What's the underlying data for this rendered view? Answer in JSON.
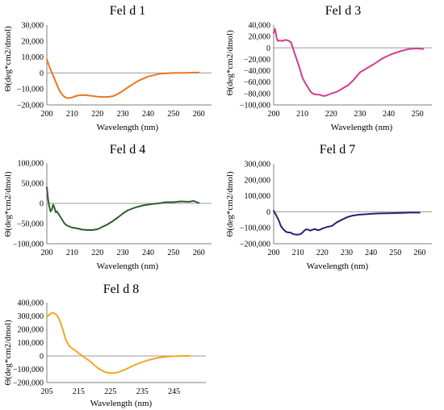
{
  "chart_data": [
    {
      "type": "line",
      "title": "Fel d 1",
      "xlabel": "Wavelength (nm)",
      "ylabel": "Θ(deg*cm2/dmol)",
      "xlim": [
        200,
        265
      ],
      "ylim": [
        -20000,
        30000
      ],
      "xticks": [
        200,
        210,
        220,
        230,
        240,
        250,
        260
      ],
      "yticks": [
        -20000,
        -10000,
        0,
        10000,
        20000,
        30000
      ],
      "ytick_labels": [
        "−20,000",
        "−10,000",
        "0",
        "10,000",
        "20,000",
        "30,000"
      ],
      "grid": false,
      "color": "#E87722",
      "series": [
        {
          "x": [
            200,
            201,
            202,
            203,
            204,
            205,
            206,
            207,
            208,
            209,
            210,
            212,
            214,
            216,
            218,
            220,
            222,
            224,
            226,
            228,
            230,
            233,
            236,
            240,
            245,
            250,
            255,
            260
          ],
          "y": [
            8500,
            4000,
            200,
            -3500,
            -7500,
            -11000,
            -13500,
            -15000,
            -15700,
            -15700,
            -15300,
            -14200,
            -13800,
            -14000,
            -14400,
            -14800,
            -15000,
            -15000,
            -14600,
            -13200,
            -11200,
            -8000,
            -5000,
            -2200,
            -400,
            0,
            100,
            300
          ]
        }
      ]
    },
    {
      "type": "line",
      "title": "Fel d 3",
      "xlabel": "Wavelength (nm)",
      "ylabel": "Θ(deg*cm2/dmol)",
      "xlim": [
        200,
        255
      ],
      "ylim": [
        -100000,
        40000
      ],
      "xticks": [
        200,
        210,
        220,
        230,
        240,
        250
      ],
      "yticks": [
        -100000,
        -80000,
        -60000,
        -40000,
        -20000,
        0,
        20000,
        40000
      ],
      "ytick_labels": [
        "−100,000",
        "−80,000",
        "−60,000",
        "−40,000",
        "−20,000",
        "0",
        "20,000",
        "40,000"
      ],
      "grid": false,
      "color": "#D63A8F",
      "series": [
        {
          "x": [
            200,
            200.5,
            201,
            201.5,
            202,
            203,
            204,
            205,
            206,
            207,
            208,
            209,
            210,
            211,
            212,
            213,
            214,
            215,
            216,
            217,
            218,
            219,
            220,
            222,
            224,
            226,
            228,
            230,
            232,
            235,
            238,
            241,
            244,
            247,
            250,
            252
          ],
          "y": [
            26000,
            33000,
            18000,
            12000,
            13000,
            12000,
            14000,
            13000,
            10000,
            -5000,
            -20000,
            -35000,
            -52000,
            -62000,
            -70000,
            -78000,
            -81000,
            -82000,
            -82000,
            -84000,
            -84000,
            -82000,
            -80000,
            -77000,
            -71000,
            -65000,
            -55000,
            -43000,
            -37000,
            -28000,
            -18000,
            -11000,
            -6000,
            -2000,
            -1000,
            -2000
          ]
        }
      ]
    },
    {
      "type": "line",
      "title": "Fel d 4",
      "xlabel": "Wavelength (nm)",
      "ylabel": "Θ(deg*cm2/dmol)",
      "xlim": [
        200,
        265
      ],
      "ylim": [
        -100000,
        100000
      ],
      "xticks": [
        200,
        210,
        220,
        230,
        240,
        250,
        260
      ],
      "yticks": [
        -100000,
        -50000,
        0,
        50000,
        100000
      ],
      "ytick_labels": [
        "−100,000",
        "−50,000",
        "0",
        "50,000",
        "100,000"
      ],
      "grid": false,
      "color": "#2E5E2E",
      "series": [
        {
          "x": [
            200,
            200.5,
            201,
            201.5,
            202,
            202.5,
            203,
            203.5,
            204,
            205,
            206,
            207,
            208,
            210,
            212,
            214,
            216,
            218,
            220,
            222,
            224,
            226,
            228,
            230,
            232,
            235,
            238,
            241,
            244,
            247,
            250,
            253,
            256,
            258,
            260
          ],
          "y": [
            40000,
            10000,
            -8000,
            -20000,
            -15000,
            -3000,
            -10000,
            -22000,
            -20000,
            -30000,
            -40000,
            -50000,
            -55000,
            -60000,
            -62000,
            -65000,
            -66000,
            -66000,
            -64000,
            -58000,
            -52000,
            -44000,
            -35000,
            -25000,
            -17000,
            -10000,
            -5000,
            -2000,
            0,
            3000,
            3000,
            5000,
            4000,
            6000,
            1000
          ]
        }
      ]
    },
    {
      "type": "line",
      "title": "Fel d 7",
      "xlabel": "Wavelength (nm)",
      "ylabel": "Θ(deg*cm2/dmol)",
      "xlim": [
        200,
        265
      ],
      "ylim": [
        -200000,
        300000
      ],
      "xticks": [
        200,
        210,
        220,
        230,
        240,
        250,
        260
      ],
      "yticks": [
        -200000,
        -100000,
        0,
        100000,
        200000,
        300000
      ],
      "ytick_labels": [
        "−200,000",
        "−100,000",
        "0",
        "100,000",
        "200,000",
        "300,000"
      ],
      "grid": false,
      "color": "#2B1F70",
      "series": [
        {
          "x": [
            200,
            201,
            202,
            203,
            204,
            205,
            206,
            207,
            208,
            209,
            210,
            211,
            212,
            213,
            214,
            215,
            216,
            217,
            218,
            219,
            220,
            222,
            224,
            226,
            228,
            230,
            232,
            235,
            238,
            241,
            244,
            247,
            250,
            253,
            256,
            260
          ],
          "y": [
            5000,
            -20000,
            -50000,
            -90000,
            -110000,
            -125000,
            -130000,
            -130000,
            -140000,
            -142000,
            -143000,
            -140000,
            -128000,
            -112000,
            -110000,
            -118000,
            -112000,
            -108000,
            -115000,
            -112000,
            -105000,
            -95000,
            -88000,
            -65000,
            -50000,
            -35000,
            -25000,
            -18000,
            -15000,
            -12000,
            -10000,
            -9000,
            -8000,
            -7000,
            -5000,
            -5000
          ]
        }
      ]
    },
    {
      "type": "line",
      "title": "Fel d 8",
      "xlabel": "Wavelength (nm)",
      "ylabel": "Θ(deg*cm2/dmol)",
      "xlim": [
        205,
        255
      ],
      "ylim": [
        -200000,
        400000
      ],
      "xticks": [
        205,
        215,
        225,
        235,
        245
      ],
      "yticks": [
        -200000,
        -100000,
        0,
        100000,
        200000,
        300000,
        400000
      ],
      "ytick_labels": [
        "−200,000",
        "−100,000",
        "0",
        "100,000",
        "200,000",
        "300,000",
        "400,000"
      ],
      "grid": false,
      "color": "#F5A623",
      "series": [
        {
          "x": [
            205,
            206,
            207,
            208,
            209,
            210,
            211,
            212,
            213,
            214,
            215,
            216,
            217,
            218,
            219,
            220,
            221,
            222,
            223,
            224,
            225,
            226,
            227,
            228,
            230,
            232,
            234,
            236,
            238,
            240,
            242,
            244,
            246,
            248,
            250
          ],
          "y": [
            290000,
            315000,
            325000,
            310000,
            270000,
            200000,
            120000,
            75000,
            55000,
            40000,
            20000,
            5000,
            -15000,
            -30000,
            -50000,
            -70000,
            -90000,
            -105000,
            -118000,
            -125000,
            -128000,
            -128000,
            -125000,
            -118000,
            -98000,
            -75000,
            -55000,
            -38000,
            -24000,
            -14000,
            -7000,
            -3000,
            -1000,
            0,
            0
          ]
        }
      ]
    }
  ]
}
